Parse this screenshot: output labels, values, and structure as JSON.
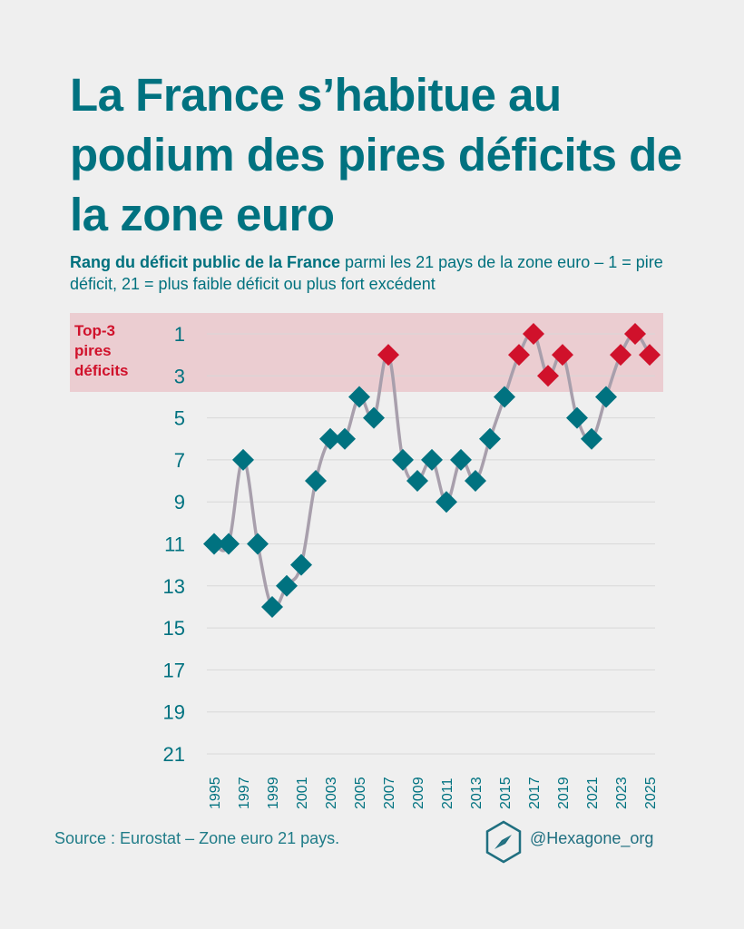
{
  "title": "La France s’habitue au podium des pires déficits de la zone euro",
  "subtitle": {
    "bold": "Rang du déficit public de la France",
    "rest": " parmi les 21 pays de la zone euro – 1 = pire déficit, 21 = plus faible déficit ou plus fort excédent"
  },
  "footer": {
    "source": "Source : Eurostat – Zone euro 21 pays.",
    "handle": "@Hexagone_org",
    "logo_icon": "hexagon-compass-icon"
  },
  "colors": {
    "accent": "#007280",
    "highlight": "#d0112b",
    "band": "#ebcdd1",
    "line": "#a89fac",
    "grid": "#d8d8d8"
  },
  "chart_data": {
    "type": "line",
    "title": "Rang du déficit public de la France",
    "xlabel": "",
    "ylabel": "Rang",
    "x": [
      1995,
      1996,
      1997,
      1998,
      1999,
      2000,
      2001,
      2002,
      2003,
      2004,
      2005,
      2006,
      2007,
      2008,
      2009,
      2010,
      2011,
      2012,
      2013,
      2014,
      2015,
      2016,
      2017,
      2018,
      2019,
      2020,
      2021,
      2022,
      2023,
      2024,
      2025
    ],
    "series": [
      {
        "name": "France",
        "values": [
          11,
          11,
          7,
          11,
          14,
          13,
          12,
          8,
          6,
          6,
          4,
          5,
          2,
          7,
          8,
          7,
          9,
          7,
          8,
          6,
          4,
          2,
          1,
          3,
          2,
          5,
          6,
          4,
          2,
          1,
          2
        ]
      }
    ],
    "x_ticks": [
      "1995",
      "1997",
      "1999",
      "2001",
      "2003",
      "2005",
      "2007",
      "2009",
      "2011",
      "2013",
      "2015",
      "2017",
      "2019",
      "2021",
      "2023",
      "2025"
    ],
    "y_ticks": [
      "1",
      "3",
      "5",
      "7",
      "9",
      "11",
      "13",
      "15",
      "17",
      "19",
      "21"
    ],
    "ylim": [
      1,
      21
    ],
    "y_inverted": true,
    "grid": true,
    "highlight_band": {
      "label": "Top-3 pires déficits",
      "label_lines": [
        "Top-3",
        "pires",
        "déficits"
      ],
      "range": [
        1,
        3
      ]
    },
    "marker": "diamond"
  }
}
